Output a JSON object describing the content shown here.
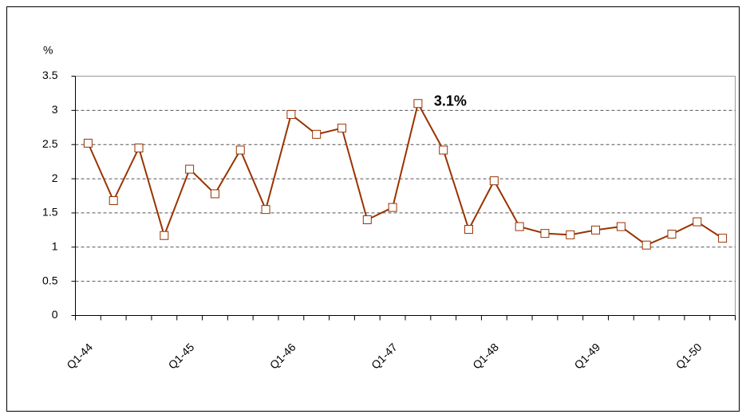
{
  "chart_data": {
    "type": "line",
    "y_label": "%",
    "annotation": "3.1%",
    "categories": [
      "Q1-44",
      null,
      null,
      null,
      "Q1-45",
      null,
      null,
      null,
      "Q1-46",
      null,
      null,
      null,
      "Q1-47",
      null,
      null,
      null,
      "Q1-48",
      null,
      null,
      null,
      "Q1-49",
      null,
      null,
      null,
      "Q1-50",
      null
    ],
    "series": [
      {
        "name": "%",
        "color": "#993300",
        "values": [
          2.52,
          1.68,
          2.45,
          1.17,
          2.14,
          1.78,
          2.42,
          1.55,
          2.94,
          2.65,
          2.74,
          1.4,
          1.58,
          3.1,
          2.42,
          1.26,
          1.97,
          1.3,
          1.2,
          1.18,
          1.25,
          1.3,
          1.03,
          1.19,
          1.37,
          1.13
        ]
      }
    ],
    "ylim": [
      0,
      3.5
    ],
    "yticks": [
      0,
      0.5,
      1,
      1.5,
      2,
      2.5,
      3,
      3.5
    ],
    "grid": true
  }
}
